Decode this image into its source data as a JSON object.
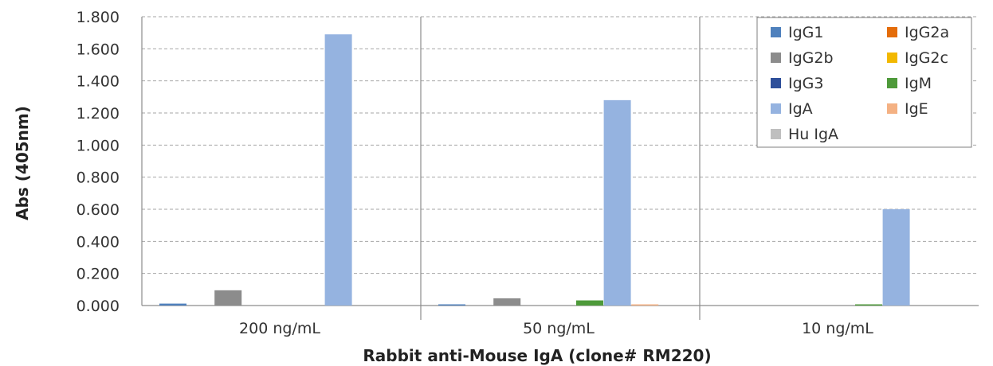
{
  "chart_data": {
    "type": "bar",
    "title": "",
    "xlabel": "Rabbit anti-Mouse IgA (clone# RM220)",
    "ylabel": "Abs (405nm)",
    "ylim": [
      0,
      1.8
    ],
    "yticks": [
      "0.000",
      "0.200",
      "0.400",
      "0.600",
      "0.800",
      "1.000",
      "1.200",
      "1.400",
      "1.600",
      "1.800"
    ],
    "grid": true,
    "legend_position": "top-right",
    "categories": [
      "200 ng/mL",
      "50 ng/mL",
      "10 ng/mL"
    ],
    "series": [
      {
        "name": "IgG1",
        "color": "#4f81bd",
        "values": [
          0.012,
          0.004,
          0.0
        ]
      },
      {
        "name": "IgG2a",
        "color": "#e46c0a",
        "values": [
          0.0,
          0.0,
          0.0
        ]
      },
      {
        "name": "IgG2b",
        "color": "#8c8c8c",
        "values": [
          0.095,
          0.045,
          0.0
        ]
      },
      {
        "name": "IgG2c",
        "color": "#f2b800",
        "values": [
          0.0,
          0.0,
          0.0
        ]
      },
      {
        "name": "IgG3",
        "color": "#2e4f9a",
        "values": [
          0.0,
          0.0,
          0.0
        ]
      },
      {
        "name": "IgM",
        "color": "#4e9a3a",
        "values": [
          0.0,
          0.032,
          0.003
        ]
      },
      {
        "name": "IgA",
        "color": "#95b3e0",
        "values": [
          1.69,
          1.28,
          0.6
        ]
      },
      {
        "name": "IgE",
        "color": "#f4b183",
        "values": [
          0.0,
          0.004,
          0.0
        ]
      },
      {
        "name": "Hu IgA",
        "color": "#bfbfbf",
        "values": [
          0.0,
          0.0,
          0.0
        ]
      }
    ]
  }
}
